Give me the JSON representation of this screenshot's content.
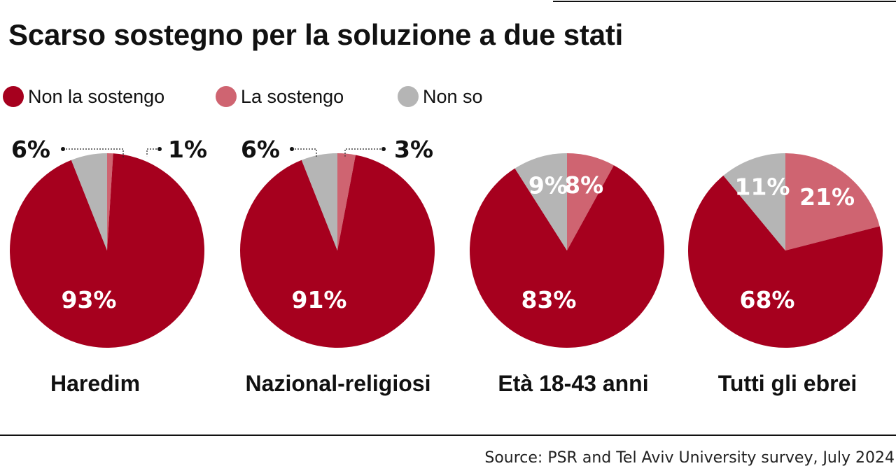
{
  "title": "Scarso sostegno per la soluzione a due stati",
  "source": "Source: PSR and Tel Aviv University survey, July 2024",
  "colors": {
    "non_la_sostengo": "#a6001e",
    "la_sostengo": "#cf6471",
    "non_so": "#b5b5b5"
  },
  "legend": [
    {
      "label": "Non la sostengo",
      "color": "#a6001e"
    },
    {
      "label": "La sostengo",
      "color": "#cf6471"
    },
    {
      "label": "Non so",
      "color": "#b5b5b5"
    }
  ],
  "chart_data": {
    "type": "pie",
    "series_order": [
      "Non la sostengo",
      "La sostengo",
      "Non so"
    ],
    "pies": [
      {
        "group": "Haredim",
        "values": [
          93,
          1,
          6
        ],
        "labels": [
          "93%",
          "1%",
          "6%"
        ]
      },
      {
        "group": "Nazional-religiosi",
        "values": [
          91,
          3,
          6
        ],
        "labels": [
          "91%",
          "3%",
          "6%"
        ]
      },
      {
        "group": "Età 18-43 anni",
        "values": [
          83,
          8,
          9
        ],
        "labels": [
          "83%",
          "8%",
          "9%"
        ]
      },
      {
        "group": "Tutti gli ebrei",
        "values": [
          68,
          21,
          11
        ],
        "labels": [
          "68%",
          "21%",
          "11%"
        ]
      }
    ]
  }
}
